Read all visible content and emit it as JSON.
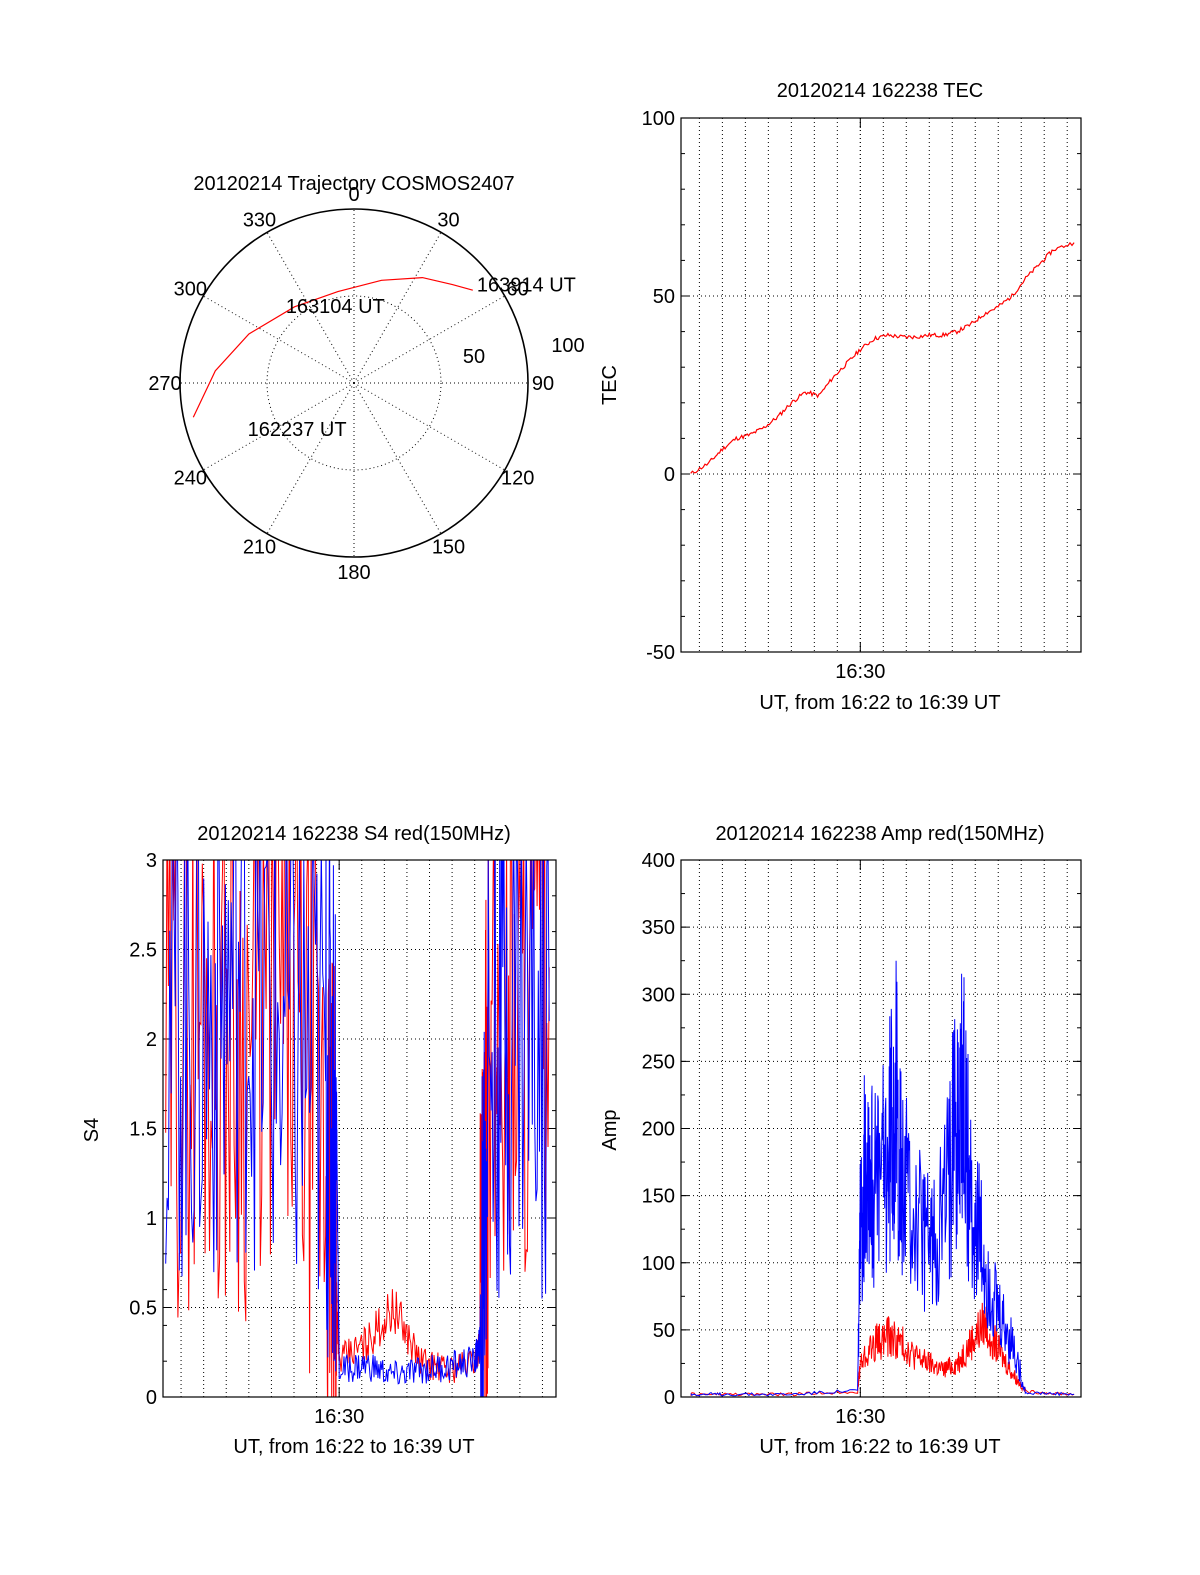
{
  "chart_data": [
    {
      "type": "polar",
      "title": "20120214 Trajectory COSMOS2407",
      "azimuth_labels": [
        "0",
        "30",
        "60",
        "90",
        "120",
        "150",
        "180",
        "210",
        "240",
        "270",
        "300",
        "330"
      ],
      "radial_labels": [
        "50",
        "100"
      ],
      "series": [
        {
          "color": "#ff0000",
          "points": [
            {
              "az": 258,
              "el": 5
            },
            {
              "az": 275,
              "el": 18
            },
            {
              "az": 295,
              "el": 30
            },
            {
              "az": 322,
              "el": 40
            },
            {
              "az": 350,
              "el": 42
            },
            {
              "az": 15,
              "el": 35
            },
            {
              "az": 33,
              "el": 25
            },
            {
              "az": 45,
              "el": 18
            },
            {
              "az": 52,
              "el": 12
            }
          ]
        }
      ],
      "annotations": [
        {
          "text": "163914 UT",
          "az": 52,
          "el": 8
        },
        {
          "text": "163104 UT",
          "az": 343,
          "el": 49
        },
        {
          "text": "162237 UT",
          "az": 245,
          "el": 35
        }
      ]
    },
    {
      "type": "line",
      "title": "20120214 162238 TEC",
      "xlabel": "UT, from 16:22 to 16:39 UT",
      "ylabel": "TEC",
      "xlim": [
        16.37,
        16.66
      ],
      "ylim": [
        -50,
        100
      ],
      "yticks": [
        "-50",
        "0",
        "50",
        "100"
      ],
      "xtick_labels": [
        "16:30"
      ],
      "series": [
        {
          "color": "#ff0000",
          "x": [
            16.377,
            16.39,
            16.4,
            16.41,
            16.42,
            16.43,
            16.44,
            16.45,
            16.46,
            16.47,
            16.48,
            16.49,
            16.5,
            16.51,
            16.52,
            16.53,
            16.54,
            16.55,
            16.56,
            16.57,
            16.58,
            16.59,
            16.6,
            16.61,
            16.62,
            16.63,
            16.64,
            16.655
          ],
          "y": [
            0,
            3,
            7,
            10,
            11,
            13,
            16,
            20,
            23,
            22,
            27,
            31,
            35,
            38,
            39,
            38.5,
            38.5,
            39,
            39,
            40,
            42,
            45,
            47,
            50,
            55,
            59,
            63,
            65
          ]
        }
      ]
    },
    {
      "type": "line",
      "title": "20120214 162238 S4 red(150MHz)",
      "xlabel": "UT, from 16:22 to 16:39 UT",
      "ylabel": "S4",
      "xlim": [
        16.37,
        16.66
      ],
      "ylim": [
        0,
        3
      ],
      "yticks": [
        "0",
        "0.5",
        "1",
        "1.5",
        "2",
        "2.5",
        "3"
      ],
      "xtick_labels": [
        "16:30"
      ],
      "series": [
        {
          "color": "#ff0000",
          "x": [
            16.372,
            16.4,
            16.43,
            16.46,
            16.49,
            16.497,
            16.5,
            16.52,
            16.54,
            16.56,
            16.58,
            16.6,
            16.606,
            16.61,
            16.63,
            16.655
          ],
          "y": [
            1.9,
            2.2,
            2.0,
            2.3,
            1.3,
            0.8,
            0.2,
            0.3,
            0.5,
            0.2,
            0.15,
            0.2,
            0.35,
            1.8,
            2.2,
            2.4
          ]
        },
        {
          "color": "#0000ff",
          "x": [
            16.372,
            16.4,
            16.43,
            16.46,
            16.49,
            16.498,
            16.5,
            16.52,
            16.54,
            16.56,
            16.58,
            16.6,
            16.604,
            16.61,
            16.63,
            16.655
          ],
          "y": [
            2.2,
            2.1,
            2.4,
            2.0,
            1.8,
            1.6,
            0.15,
            0.18,
            0.12,
            0.15,
            0.17,
            0.2,
            0.3,
            2.0,
            2.3,
            2.1
          ]
        }
      ]
    },
    {
      "type": "line",
      "title": "20120214 162238 Amp red(150MHz)",
      "xlabel": "UT, from 16:22 to 16:39 UT",
      "ylabel": "Amp",
      "xlim": [
        16.37,
        16.66
      ],
      "ylim": [
        0,
        400
      ],
      "yticks": [
        "0",
        "50",
        "100",
        "150",
        "200",
        "250",
        "300",
        "350",
        "400"
      ],
      "xtick_labels": [
        "16:30"
      ],
      "series": [
        {
          "color": "#ff0000",
          "x": [
            16.377,
            16.4,
            16.45,
            16.498,
            16.5,
            16.51,
            16.52,
            16.53,
            16.54,
            16.55,
            16.56,
            16.57,
            16.58,
            16.59,
            16.6,
            16.61,
            16.62,
            16.655
          ],
          "y": [
            2,
            2,
            2,
            4,
            25,
            40,
            45,
            40,
            30,
            25,
            20,
            25,
            40,
            55,
            35,
            18,
            4,
            2
          ]
        },
        {
          "color": "#0000ff",
          "x": [
            16.377,
            16.4,
            16.45,
            16.498,
            16.5,
            16.505,
            16.51,
            16.52,
            16.525,
            16.53,
            16.54,
            16.55,
            16.56,
            16.57,
            16.575,
            16.58,
            16.59,
            16.6,
            16.61,
            16.62,
            16.655
          ],
          "y": [
            2,
            2,
            2,
            5,
            120,
            200,
            150,
            180,
            240,
            160,
            130,
            110,
            140,
            200,
            220,
            150,
            100,
            60,
            40,
            3,
            2
          ]
        }
      ]
    }
  ]
}
